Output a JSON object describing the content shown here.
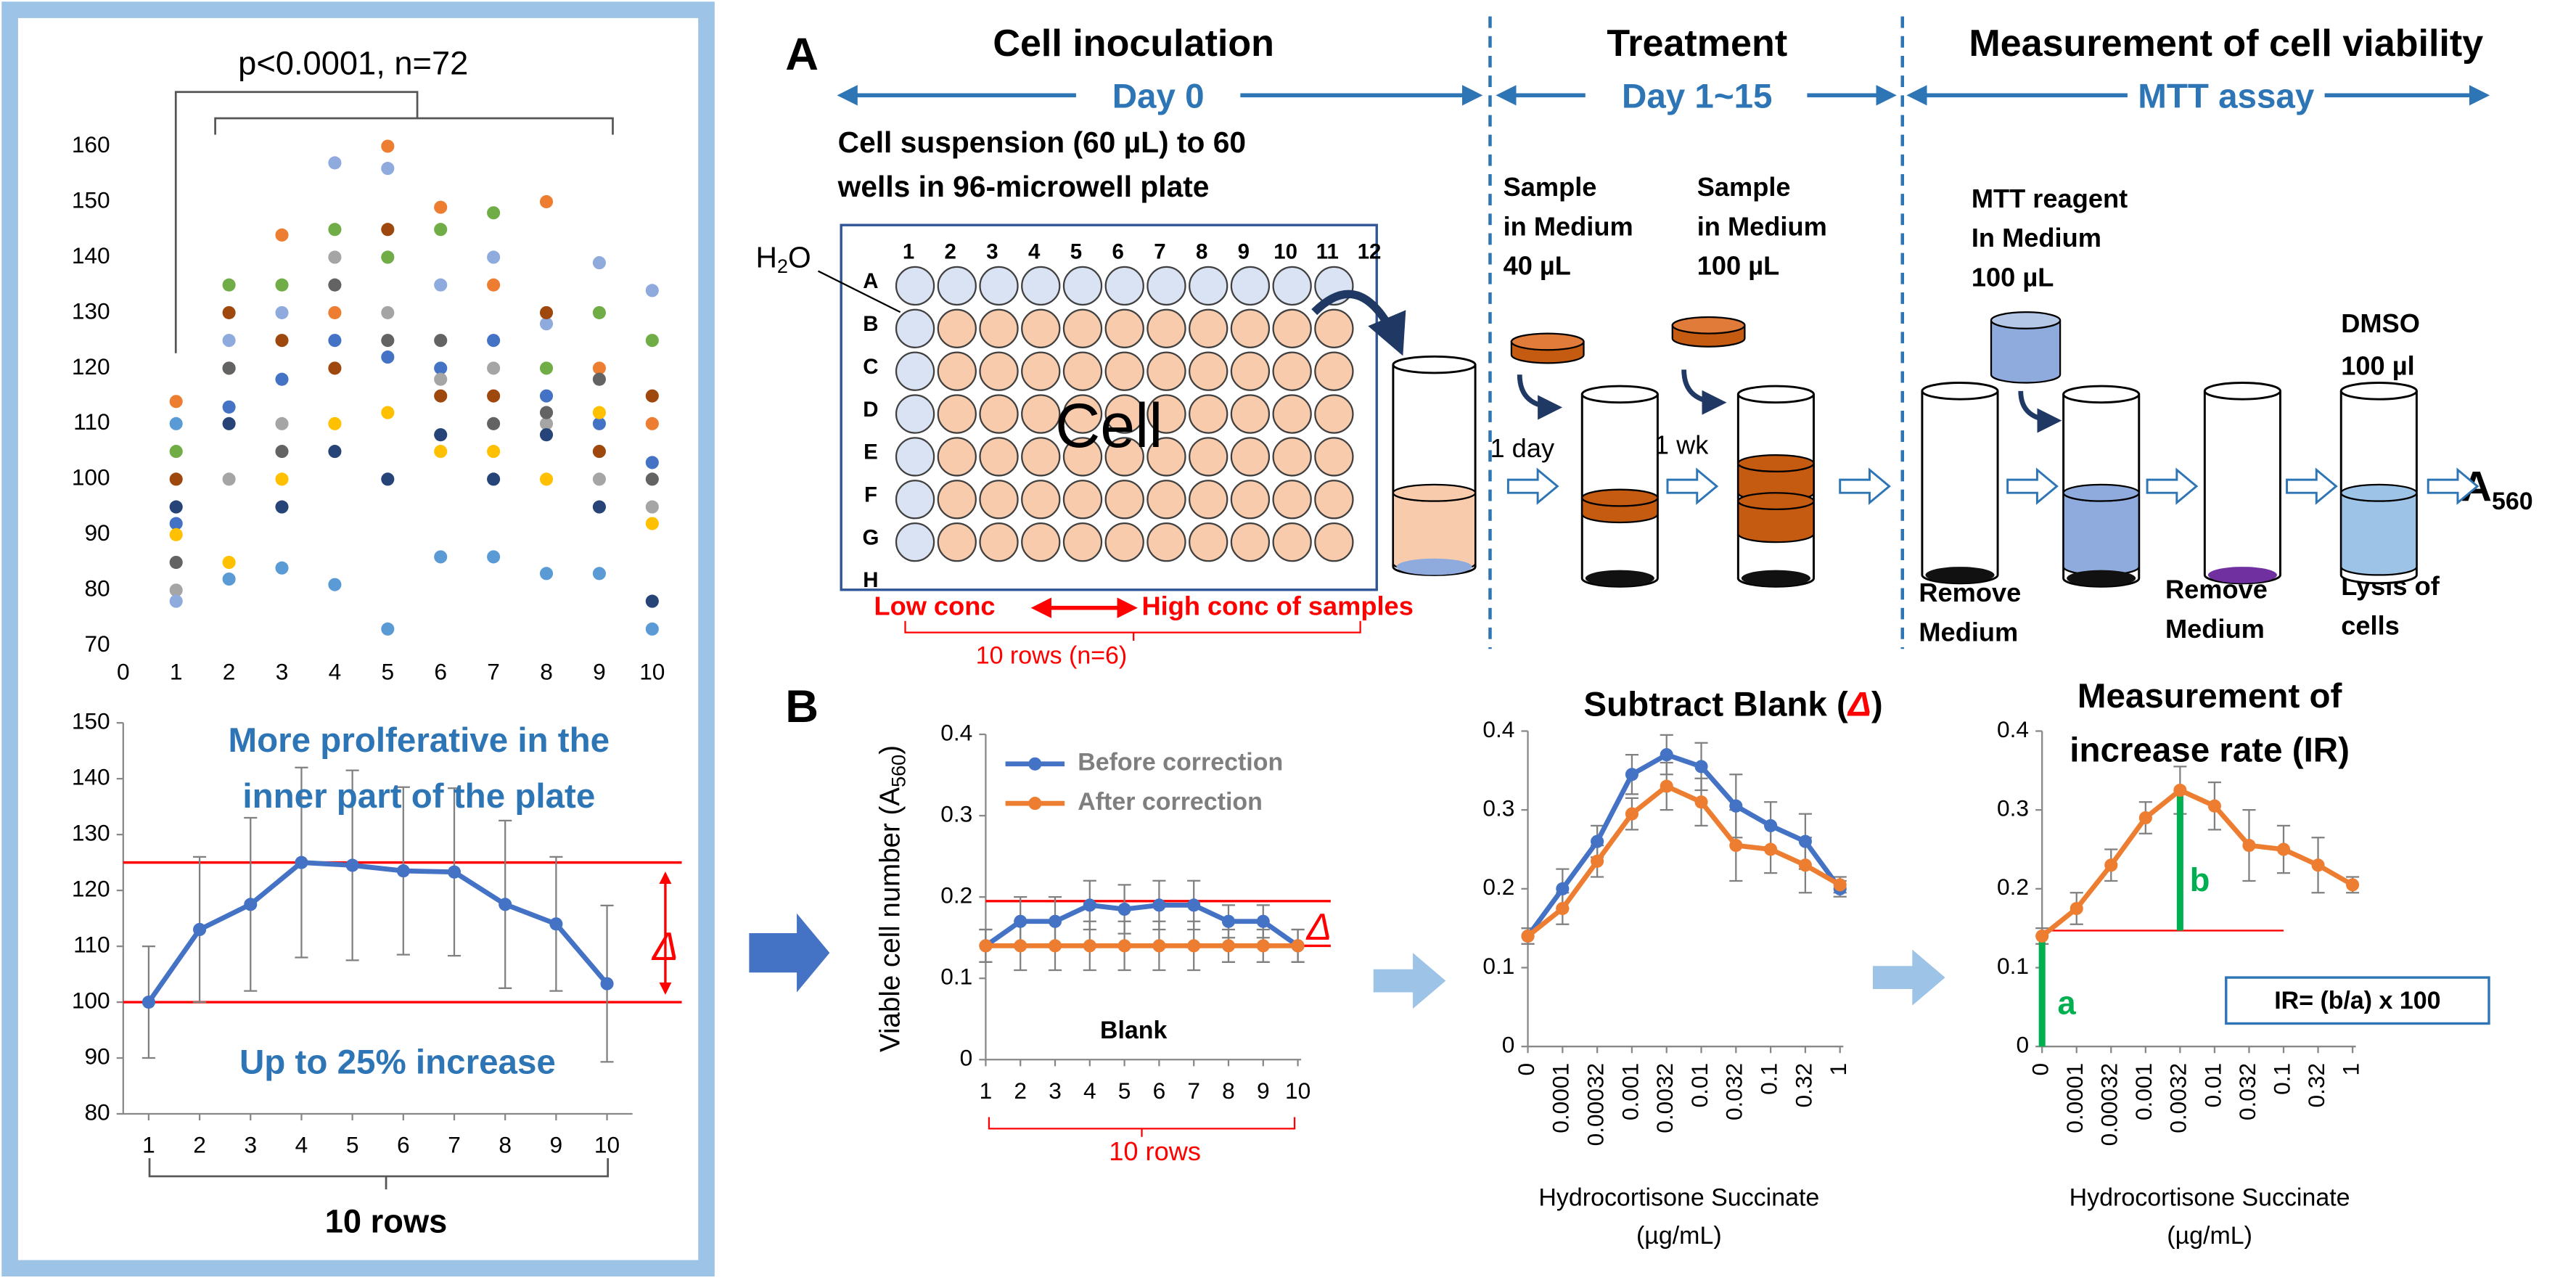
{
  "panel_labels": [
    "A",
    "B"
  ],
  "diagram": {
    "steps": [
      {
        "title": "Cell inoculation",
        "period": "Day 0"
      },
      {
        "title": "Treatment",
        "period": "Day 1~15"
      },
      {
        "title": "Measurement of cell viability",
        "period": "MTT assay"
      }
    ],
    "plate_caption": [
      "Cell suspension (60 µL) to 60",
      "wells in 96-microwell plate"
    ],
    "plate_columns": [
      "1",
      "2",
      "3",
      "4",
      "5",
      "6",
      "7",
      "8",
      "9",
      "10",
      "11",
      "12"
    ],
    "plate_rows": [
      "A",
      "B",
      "C",
      "D",
      "E",
      "F",
      "G",
      "H"
    ],
    "plate_center": "Cell",
    "water": "H",
    "water_sub": "2",
    "water_end": "O",
    "concentration": {
      "low": "Low conc",
      "high": "High conc of samples",
      "rows": "10 rows (n=6)"
    },
    "samples": [
      [
        "Sample",
        "in Medium",
        "40 µL"
      ],
      [
        "Sample",
        "in Medium",
        "100 µL"
      ]
    ],
    "intervals": [
      "1 day",
      "1 wk"
    ],
    "mtt": [
      "MTT reagent",
      "In Medium",
      "100 µL"
    ],
    "dmso": [
      "DMSO",
      "100 µl"
    ],
    "removals": [
      [
        "Remove",
        "Medium"
      ],
      [
        "Remove",
        "Medium"
      ]
    ],
    "lysis": [
      "Lysis of",
      "cells"
    ],
    "readout": "A",
    "readout_sub": "560"
  },
  "chart_data": [
    {
      "type": "scatter",
      "annotation": "p<0.0001, n=72",
      "x": [
        1,
        2,
        3,
        4,
        5,
        6,
        7,
        8,
        9,
        10
      ],
      "xlim": [
        0,
        10
      ],
      "xticks": [
        0,
        1,
        2,
        3,
        4,
        5,
        6,
        7,
        8,
        9,
        10
      ],
      "ylim": [
        70,
        160
      ],
      "yticks": [
        70,
        80,
        90,
        100,
        110,
        120,
        130,
        140,
        150,
        160
      ],
      "series": [
        {
          "color": "#4472c4",
          "values": [
            92,
            113,
            118,
            125,
            122,
            120,
            125,
            115,
            110,
            103
          ]
        },
        {
          "color": "#ed7d31",
          "values": [
            114,
            120,
            144,
            130,
            160,
            149,
            135,
            150,
            120,
            110
          ]
        },
        {
          "color": "#a5a5a5",
          "values": [
            80,
            100,
            110,
            140,
            130,
            118,
            120,
            110,
            100,
            95
          ]
        },
        {
          "color": "#ffc000",
          "values": [
            90,
            85,
            100,
            110,
            112,
            105,
            105,
            100,
            112,
            92
          ]
        },
        {
          "color": "#8faadc",
          "values": [
            78,
            125,
            130,
            157,
            156,
            135,
            140,
            128,
            139,
            134
          ]
        },
        {
          "color": "#70ad47",
          "values": [
            105,
            135,
            135,
            145,
            140,
            145,
            148,
            120,
            130,
            125
          ]
        },
        {
          "color": "#264478",
          "values": [
            95,
            110,
            95,
            105,
            100,
            108,
            100,
            108,
            95,
            78
          ]
        },
        {
          "color": "#9e480e",
          "values": [
            100,
            130,
            125,
            120,
            145,
            115,
            115,
            130,
            105,
            115
          ]
        },
        {
          "color": "#636363",
          "values": [
            85,
            120,
            105,
            135,
            125,
            125,
            110,
            112,
            118,
            100
          ]
        },
        {
          "color": "#5b9bd5",
          "values": [
            110,
            82,
            84,
            81,
            73,
            86,
            86,
            83,
            83,
            73
          ]
        }
      ]
    },
    {
      "type": "line",
      "categories": [
        "1",
        "2",
        "3",
        "4",
        "5",
        "6",
        "7",
        "8",
        "9",
        "10"
      ],
      "values": [
        100,
        113,
        117.5,
        125,
        124.5,
        123.5,
        123.3,
        117.5,
        114,
        103.3
      ],
      "errors": [
        10,
        13,
        15.5,
        17,
        17,
        15,
        15,
        15,
        12,
        14
      ],
      "color": "#4472c4",
      "error_color": "#808080",
      "ylim": [
        80,
        150
      ],
      "yticks": [
        80,
        90,
        100,
        110,
        120,
        130,
        140,
        150
      ],
      "reference_lines": [
        125,
        100
      ],
      "reference_color": "#ff0000",
      "annotations": [
        "More prolferative in the",
        "inner part of the plate",
        "Up to 25% increase",
        "Δ"
      ],
      "xlabel": "10 rows"
    },
    {
      "type": "line",
      "categories": [
        "1",
        "2",
        "3",
        "4",
        "5",
        "6",
        "7",
        "8",
        "9",
        "10"
      ],
      "ylabel": "Viable cell number (A",
      "ylabel_sub": "560",
      "ylabel_end": ")",
      "series": [
        {
          "name": "Before correction",
          "color": "#4472c4",
          "values": [
            0.14,
            0.17,
            0.17,
            0.19,
            0.185,
            0.19,
            0.19,
            0.17,
            0.17,
            0.14
          ],
          "errors": [
            0.02,
            0.03,
            0.03,
            0.03,
            0.03,
            0.03,
            0.03,
            0.02,
            0.02,
            0.02
          ]
        },
        {
          "name": "After correction",
          "color": "#ed7d31",
          "values": [
            0.14,
            0.14,
            0.14,
            0.14,
            0.14,
            0.14,
            0.14,
            0.14,
            0.14,
            0.14
          ],
          "errors": [
            0.02,
            0.03,
            0.03,
            0.03,
            0.03,
            0.03,
            0.03,
            0.02,
            0.02,
            0.02
          ]
        }
      ],
      "error_color": "#808080",
      "ylim": [
        0,
        0.4
      ],
      "yticks": [
        0,
        0.1,
        0.2,
        0.3,
        0.4
      ],
      "reference_lines": [
        0.195,
        0.14
      ],
      "reference_color": "#ff0000",
      "annotations": [
        "Blank",
        "10 rows",
        "Δ"
      ]
    },
    {
      "type": "line",
      "title": "Subtract Blank (",
      "title_mark": "Δ",
      "title_end": ")",
      "categories": [
        "0",
        "0.0001",
        "0.00032",
        "0.001",
        "0.0032",
        "0.01",
        "0.032",
        "0.1",
        "0.32",
        "1"
      ],
      "series": [
        {
          "color": "#4472c4",
          "values": [
            0.14,
            0.2,
            0.26,
            0.345,
            0.37,
            0.355,
            0.305,
            0.28,
            0.26,
            0.2
          ],
          "errors": [
            0.01,
            0.025,
            0.02,
            0.025,
            0.025,
            0.03,
            0.04,
            0.03,
            0.035,
            0.01
          ]
        },
        {
          "color": "#ed7d31",
          "values": [
            0.14,
            0.175,
            0.235,
            0.295,
            0.33,
            0.31,
            0.255,
            0.25,
            0.23,
            0.205
          ],
          "errors": [
            0.01,
            0.02,
            0.02,
            0.02,
            0.03,
            0.03,
            0.045,
            0.03,
            0.035,
            0.01
          ]
        }
      ],
      "error_color": "#808080",
      "ylim": [
        0,
        0.4
      ],
      "yticks": [
        0,
        0.1,
        0.2,
        0.3,
        0.4
      ],
      "xlabel": "Hydrocortisone Succinate",
      "xlabel_unit": "(µg/mL)"
    },
    {
      "type": "line",
      "title": [
        "Measurement of",
        "increase rate (IR)"
      ],
      "categories": [
        "0",
        "0.0001",
        "0.00032",
        "0.001",
        "0.0032",
        "0.01",
        "0.032",
        "0.1",
        "0.32",
        "1"
      ],
      "series": [
        {
          "color": "#ed7d31",
          "values": [
            0.14,
            0.175,
            0.23,
            0.29,
            0.325,
            0.305,
            0.255,
            0.25,
            0.23,
            0.205
          ],
          "errors": [
            0.01,
            0.02,
            0.02,
            0.02,
            0.03,
            0.03,
            0.045,
            0.03,
            0.035,
            0.01
          ]
        }
      ],
      "error_color": "#808080",
      "ylim": [
        0,
        0.4
      ],
      "yticks": [
        0,
        0.1,
        0.2,
        0.3,
        0.4
      ],
      "reference_lines": [
        0.147
      ],
      "reference_color": "#ff0000",
      "marker_color": "#00b050",
      "annotations": [
        "a",
        "b",
        "IR= (b/a) x 100"
      ],
      "xlabel": "Hydrocortisone Succinate",
      "xlabel_unit": "(µg/mL)"
    }
  ]
}
